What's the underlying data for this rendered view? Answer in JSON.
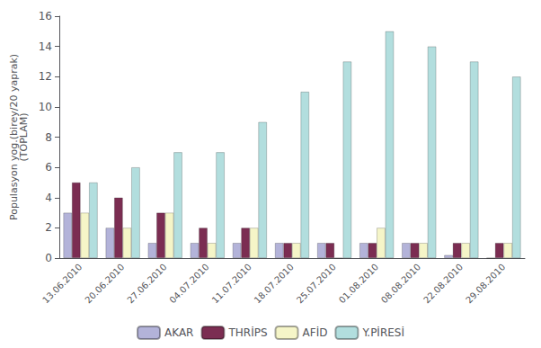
{
  "chart_data": {
    "type": "bar",
    "ylabel": "Populasyon yog.(birey/20 yaprak)\n(TOPLAM)",
    "categories": [
      "13.06.2010",
      "20.06.2010",
      "27.06.2010",
      "04.07.2010",
      "11.07.2010",
      "18.07.2010",
      "25.07.2010",
      "01.08.2010",
      "08.08.2010",
      "22.08.2010",
      "29.08.2010"
    ],
    "series": [
      {
        "name": "AKAR",
        "color": "#b3b3d9",
        "values": [
          3,
          2,
          1,
          1,
          1,
          1,
          1,
          1,
          1,
          0.2,
          0
        ]
      },
      {
        "name": "THRİPS",
        "color": "#7b2d52",
        "values": [
          5,
          4,
          3,
          2,
          2,
          1,
          1,
          1,
          1,
          1,
          1
        ]
      },
      {
        "name": "AFİD",
        "color": "#f5f5c8",
        "values": [
          3,
          2,
          3,
          1,
          2,
          1,
          0,
          2,
          1,
          1,
          1
        ]
      },
      {
        "name": "Y.PİRESİ",
        "color": "#b2dede",
        "values": [
          5,
          6,
          7,
          7,
          9,
          11,
          13,
          15,
          14,
          13,
          12
        ]
      }
    ],
    "ylim": [
      0,
      16
    ],
    "yticks": [
      0,
      2,
      4,
      6,
      8,
      10,
      12,
      14,
      16
    ],
    "grid": false,
    "legend": "bottom"
  }
}
